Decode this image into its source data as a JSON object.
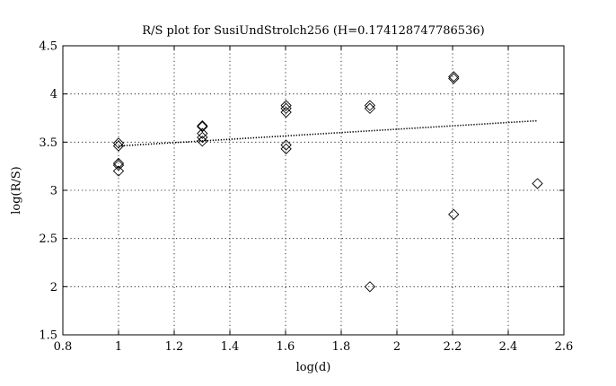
{
  "chart_data": {
    "type": "scatter",
    "title": "R/S plot for SusiUndStrolch256 (H=0.174128747786536)",
    "xlabel": "log(d)",
    "ylabel": "log(R/S)",
    "xlim": [
      0.8,
      2.6
    ],
    "ylim": [
      1.5,
      4.5
    ],
    "xticks": [
      0.8,
      1,
      1.2,
      1.4,
      1.6,
      1.8,
      2,
      2.2,
      2.4,
      2.6
    ],
    "xtick_labels": [
      "0.8",
      "1",
      "1.2",
      "1.4",
      "1.6",
      "1.8",
      "2",
      "2.2",
      "2.4",
      "2.6"
    ],
    "yticks": [
      1.5,
      2,
      2.5,
      3,
      3.5,
      4,
      4.5
    ],
    "ytick_labels": [
      "1.5",
      "2",
      "2.5",
      "3",
      "3.5",
      "4",
      "4.5"
    ],
    "grid": true,
    "marker": "diamond",
    "points": [
      {
        "x": 1.0,
        "y": 3.49
      },
      {
        "x": 1.0,
        "y": 3.46
      },
      {
        "x": 1.0,
        "y": 3.28
      },
      {
        "x": 1.0,
        "y": 3.26
      },
      {
        "x": 1.0,
        "y": 3.2
      },
      {
        "x": 1.301,
        "y": 3.67
      },
      {
        "x": 1.301,
        "y": 3.66
      },
      {
        "x": 1.301,
        "y": 3.59
      },
      {
        "x": 1.301,
        "y": 3.55
      },
      {
        "x": 1.301,
        "y": 3.51
      },
      {
        "x": 1.602,
        "y": 3.88
      },
      {
        "x": 1.602,
        "y": 3.85
      },
      {
        "x": 1.602,
        "y": 3.81
      },
      {
        "x": 1.602,
        "y": 3.47
      },
      {
        "x": 1.602,
        "y": 3.43
      },
      {
        "x": 1.903,
        "y": 3.88
      },
      {
        "x": 1.903,
        "y": 3.85
      },
      {
        "x": 1.903,
        "y": 2.0
      },
      {
        "x": 2.204,
        "y": 4.18
      },
      {
        "x": 2.204,
        "y": 4.16
      },
      {
        "x": 2.204,
        "y": 2.75
      },
      {
        "x": 2.505,
        "y": 3.07
      }
    ],
    "fit_line": {
      "x": [
        1.0,
        2.505
      ],
      "y": [
        3.46,
        3.722
      ],
      "style": "dotted",
      "slope": 0.174128747786536
    }
  }
}
